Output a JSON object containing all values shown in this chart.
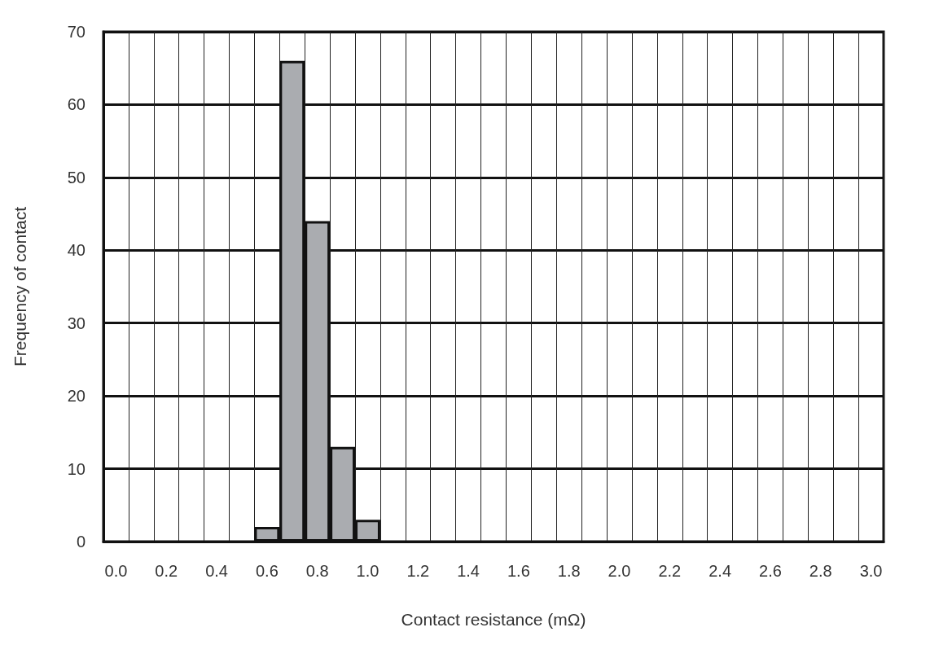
{
  "chart_data": {
    "type": "bar",
    "xlabel": "Contact resistance (mΩ)",
    "ylabel": "Frequency of contact",
    "categories": [
      "0.0",
      null,
      "0.2",
      null,
      "0.4",
      null,
      "0.6",
      null,
      "0.8",
      null,
      "1.0",
      null,
      "1.2",
      null,
      "1.4",
      null,
      "1.6",
      null,
      "1.8",
      null,
      "2.0",
      null,
      "2.2",
      null,
      "2.4",
      null,
      "2.6",
      null,
      "2.8",
      null,
      "3.0"
    ],
    "values": [
      0,
      0,
      0,
      0,
      0,
      0,
      2,
      66,
      44,
      13,
      3,
      0,
      0,
      0,
      0,
      0,
      0,
      0,
      0,
      0,
      0,
      0,
      0,
      0,
      0,
      0,
      0,
      0,
      0,
      0,
      0
    ],
    "color": "#aaacb0",
    "ylim": [
      0,
      70
    ],
    "yticks": [
      0,
      10,
      20,
      30,
      40,
      50,
      60,
      70
    ],
    "grid": true
  }
}
